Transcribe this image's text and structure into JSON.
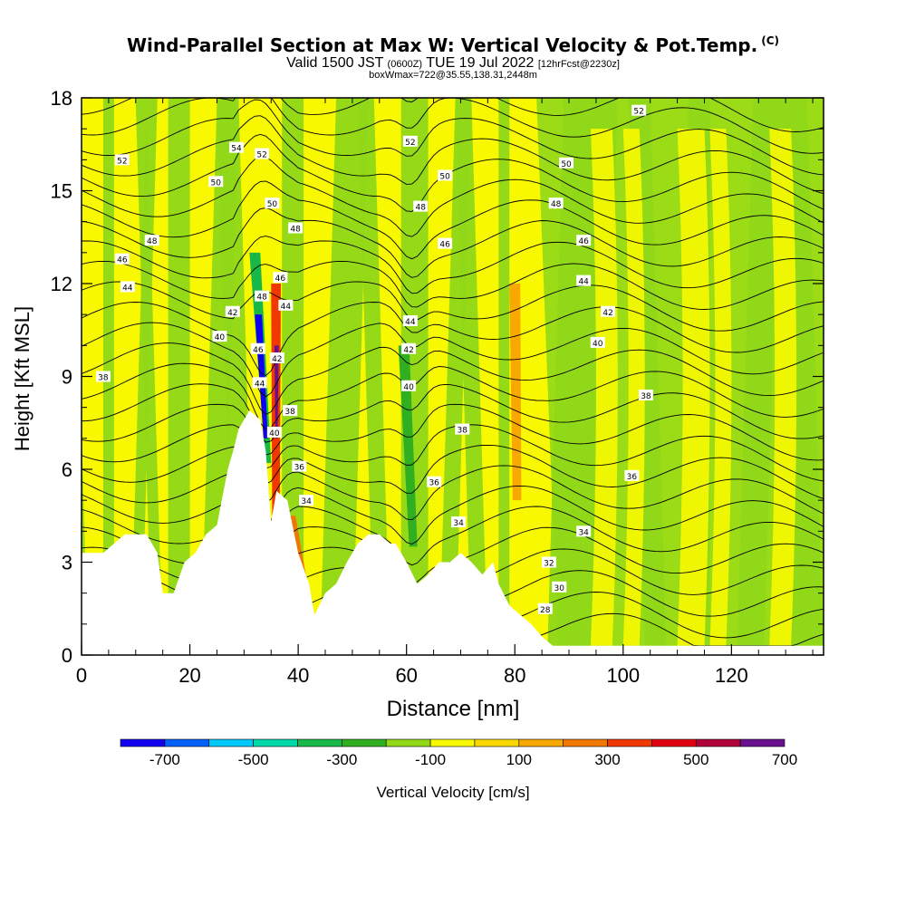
{
  "title": {
    "main": "Wind-Parallel Section at Max W: Vertical Velocity & Pot.Temp.",
    "copyright": "(C)",
    "valid_prefix": "Valid 1500 JST",
    "valid_z": "(0600Z)",
    "valid_date": "TUE 19 Jul 2022",
    "forecast": "[12hrFcst@2230z]",
    "boxwmax": "boxWmax=722@35.55,138.31,2448m"
  },
  "chart_data": {
    "type": "heatmap",
    "xlabel": "Distance [nm]",
    "ylabel": "Height [Kft MSL]",
    "xlim": [
      0,
      137
    ],
    "ylim": [
      0,
      18
    ],
    "x_ticks": [
      0,
      20,
      40,
      60,
      80,
      100,
      120
    ],
    "y_ticks": [
      0,
      3,
      6,
      9,
      12,
      15,
      18
    ],
    "terrain_top_kft": [
      [
        0,
        3.3
      ],
      [
        4,
        3.3
      ],
      [
        6,
        3.6
      ],
      [
        8,
        3.9
      ],
      [
        12,
        3.9
      ],
      [
        14,
        3.3
      ],
      [
        15,
        2.0
      ],
      [
        17,
        2.0
      ],
      [
        19,
        3.0
      ],
      [
        21,
        3.3
      ],
      [
        23,
        3.9
      ],
      [
        25,
        4.2
      ],
      [
        27,
        6.0
      ],
      [
        28,
        6.6
      ],
      [
        29,
        7.3
      ],
      [
        30,
        7.6
      ],
      [
        31,
        7.9
      ],
      [
        33,
        7.6
      ],
      [
        34,
        6.6
      ],
      [
        35,
        4.3
      ],
      [
        36,
        5.3
      ],
      [
        38,
        5.0
      ],
      [
        40,
        3.3
      ],
      [
        42,
        2.3
      ],
      [
        43,
        1.3
      ],
      [
        45,
        2.0
      ],
      [
        47,
        2.3
      ],
      [
        49,
        3.0
      ],
      [
        51,
        3.6
      ],
      [
        53,
        3.9
      ],
      [
        55,
        3.9
      ],
      [
        57,
        3.6
      ],
      [
        58,
        3.6
      ],
      [
        60,
        3.0
      ],
      [
        62,
        2.3
      ],
      [
        64,
        2.6
      ],
      [
        66,
        3.0
      ],
      [
        68,
        3.0
      ],
      [
        70,
        3.3
      ],
      [
        72,
        3.0
      ],
      [
        74,
        2.6
      ],
      [
        76,
        3.0
      ],
      [
        77,
        2.3
      ],
      [
        79,
        1.6
      ],
      [
        81,
        1.3
      ],
      [
        83,
        1.0
      ],
      [
        85,
        0.6
      ],
      [
        87,
        0.3
      ],
      [
        137,
        0.3
      ]
    ],
    "isentrope_labels": [
      {
        "x": 7.5,
        "y": 16.0,
        "v": "52"
      },
      {
        "x": 13,
        "y": 13.4,
        "v": "48"
      },
      {
        "x": 7.5,
        "y": 12.8,
        "v": "46"
      },
      {
        "x": 8.5,
        "y": 11.9,
        "v": "44"
      },
      {
        "x": 25.5,
        "y": 10.3,
        "v": "40"
      },
      {
        "x": 4,
        "y": 9.0,
        "v": "38"
      },
      {
        "x": 28.6,
        "y": 16.4,
        "v": "54"
      },
      {
        "x": 24.8,
        "y": 15.3,
        "v": "50"
      },
      {
        "x": 33.3,
        "y": 16.2,
        "v": "52"
      },
      {
        "x": 35.2,
        "y": 14.6,
        "v": "50"
      },
      {
        "x": 39.5,
        "y": 13.8,
        "v": "48"
      },
      {
        "x": 36.7,
        "y": 12.2,
        "v": "46"
      },
      {
        "x": 33.3,
        "y": 11.6,
        "v": "48"
      },
      {
        "x": 37.7,
        "y": 11.3,
        "v": "44"
      },
      {
        "x": 27.9,
        "y": 11.1,
        "v": "42"
      },
      {
        "x": 32.6,
        "y": 9.9,
        "v": "46"
      },
      {
        "x": 36.1,
        "y": 9.6,
        "v": "42"
      },
      {
        "x": 32.9,
        "y": 8.8,
        "v": "44"
      },
      {
        "x": 38.5,
        "y": 7.9,
        "v": "38"
      },
      {
        "x": 35.6,
        "y": 7.2,
        "v": "40"
      },
      {
        "x": 40.2,
        "y": 6.1,
        "v": "36"
      },
      {
        "x": 41.5,
        "y": 5.0,
        "v": "34"
      },
      {
        "x": 60.7,
        "y": 16.6,
        "v": "52"
      },
      {
        "x": 67.1,
        "y": 15.5,
        "v": "50"
      },
      {
        "x": 62.6,
        "y": 14.5,
        "v": "48"
      },
      {
        "x": 67.1,
        "y": 13.3,
        "v": "46"
      },
      {
        "x": 60.7,
        "y": 10.8,
        "v": "44"
      },
      {
        "x": 60.4,
        "y": 9.9,
        "v": "42"
      },
      {
        "x": 60.4,
        "y": 8.7,
        "v": "40"
      },
      {
        "x": 70.3,
        "y": 7.3,
        "v": "38"
      },
      {
        "x": 65.1,
        "y": 5.6,
        "v": "36"
      },
      {
        "x": 69.6,
        "y": 4.3,
        "v": "34"
      },
      {
        "x": 102.9,
        "y": 17.6,
        "v": "52"
      },
      {
        "x": 89.5,
        "y": 15.9,
        "v": "50"
      },
      {
        "x": 87.6,
        "y": 14.6,
        "v": "48"
      },
      {
        "x": 92.7,
        "y": 13.4,
        "v": "46"
      },
      {
        "x": 92.7,
        "y": 12.1,
        "v": "44"
      },
      {
        "x": 97.2,
        "y": 11.1,
        "v": "42"
      },
      {
        "x": 95.3,
        "y": 10.1,
        "v": "40"
      },
      {
        "x": 104.2,
        "y": 8.4,
        "v": "38"
      },
      {
        "x": 101.6,
        "y": 5.8,
        "v": "36"
      },
      {
        "x": 92.7,
        "y": 4.0,
        "v": "34"
      },
      {
        "x": 86.3,
        "y": 3.0,
        "v": "32"
      },
      {
        "x": 88.2,
        "y": 2.2,
        "v": "30"
      },
      {
        "x": 85.6,
        "y": 1.5,
        "v": "28"
      }
    ]
  },
  "colorbar": {
    "label": "Vertical Velocity [cm/s]",
    "tick_labels": [
      "-700",
      "-500",
      "-300",
      "-100",
      "100",
      "300",
      "500",
      "700"
    ],
    "colors": [
      "#1100f0",
      "#0060f8",
      "#00c8f8",
      "#00d8a8",
      "#18b848",
      "#30b020",
      "#90d818",
      "#f8f800",
      "#f8d800",
      "#f8a800",
      "#f07800",
      "#f03800",
      "#e00010",
      "#b00038",
      "#681090"
    ]
  }
}
